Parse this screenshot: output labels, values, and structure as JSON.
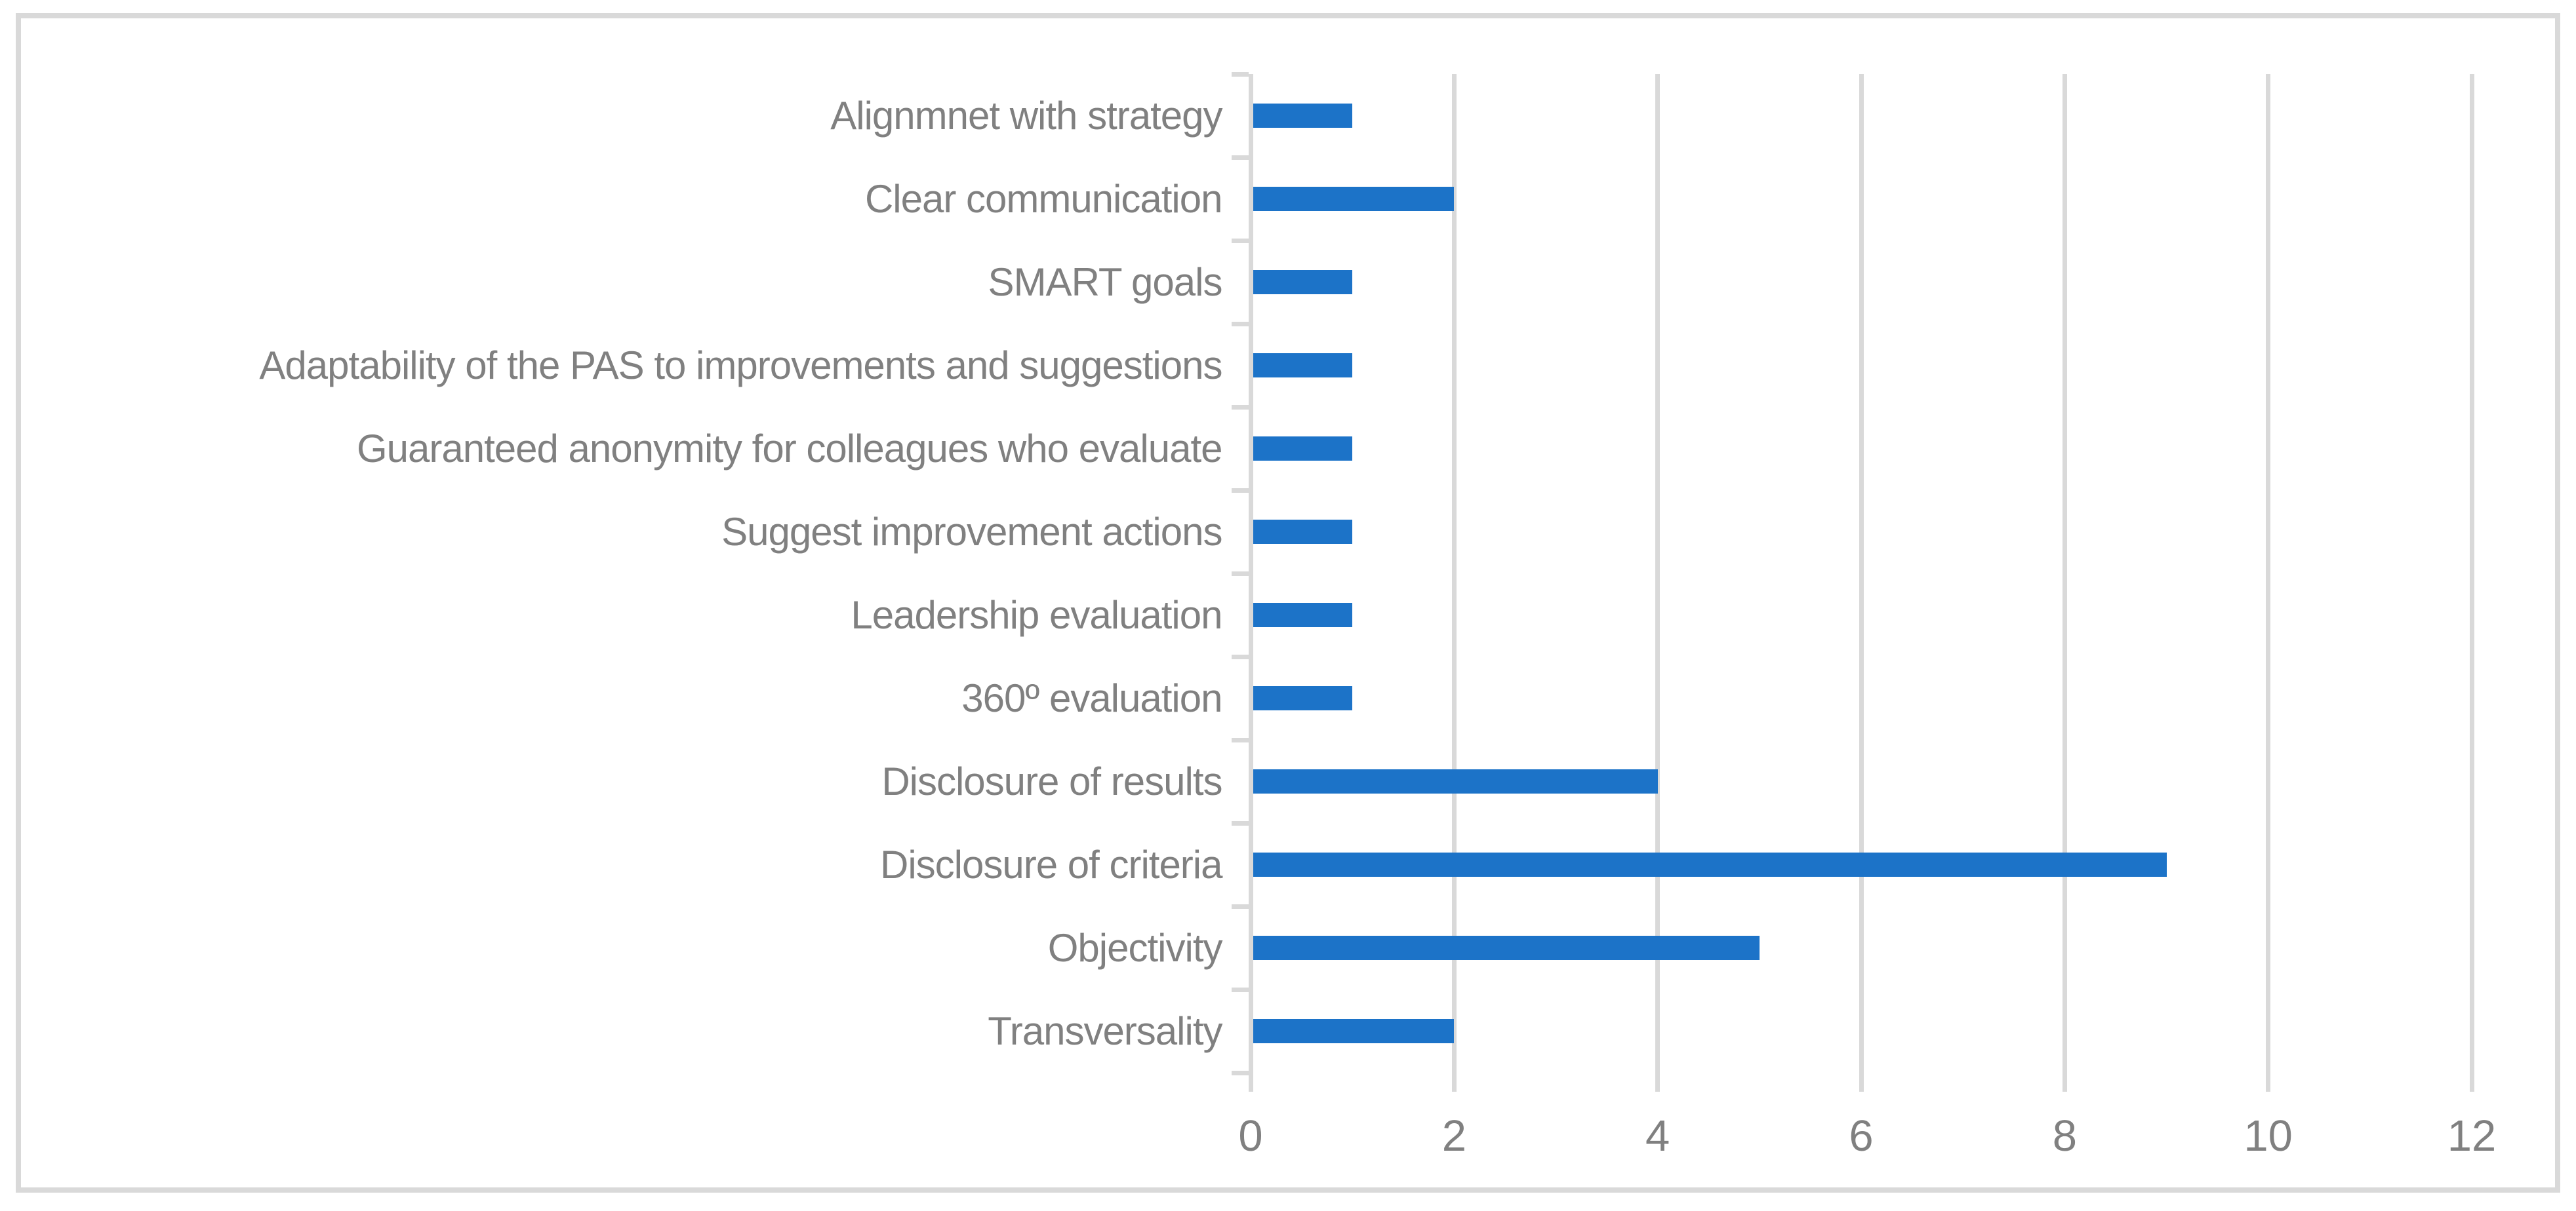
{
  "chart_data": {
    "type": "bar",
    "orientation": "horizontal",
    "categories": [
      "Alignmnet with strategy",
      "Clear communication",
      "SMART goals",
      "Adaptability of the PAS to improvements and suggestions",
      "Guaranteed anonymity for colleagues who evaluate",
      "Suggest improvement actions",
      "Leadership evaluation",
      "360º evaluation",
      "Disclosure of results",
      "Disclosure of criteria",
      "Objectivity",
      "Transversality"
    ],
    "values": [
      1,
      2,
      1,
      1,
      1,
      1,
      1,
      1,
      4,
      9,
      5,
      2
    ],
    "x_tick_labels": [
      "0",
      "2",
      "4",
      "6",
      "8",
      "10",
      "12"
    ],
    "x_tick_values": [
      0,
      2,
      4,
      6,
      8,
      10,
      12
    ],
    "gridline_values": [
      2,
      4,
      6,
      8,
      10,
      12
    ],
    "xlim": [
      0,
      12
    ],
    "grid": "vertical-only",
    "legend": "none",
    "bar_color": "#1c73c8",
    "axis_text_color": "#808080",
    "gridline_color": "#d9d9d9",
    "frame_border_color": "#d9d9d9",
    "background_color": "#ffffff"
  }
}
